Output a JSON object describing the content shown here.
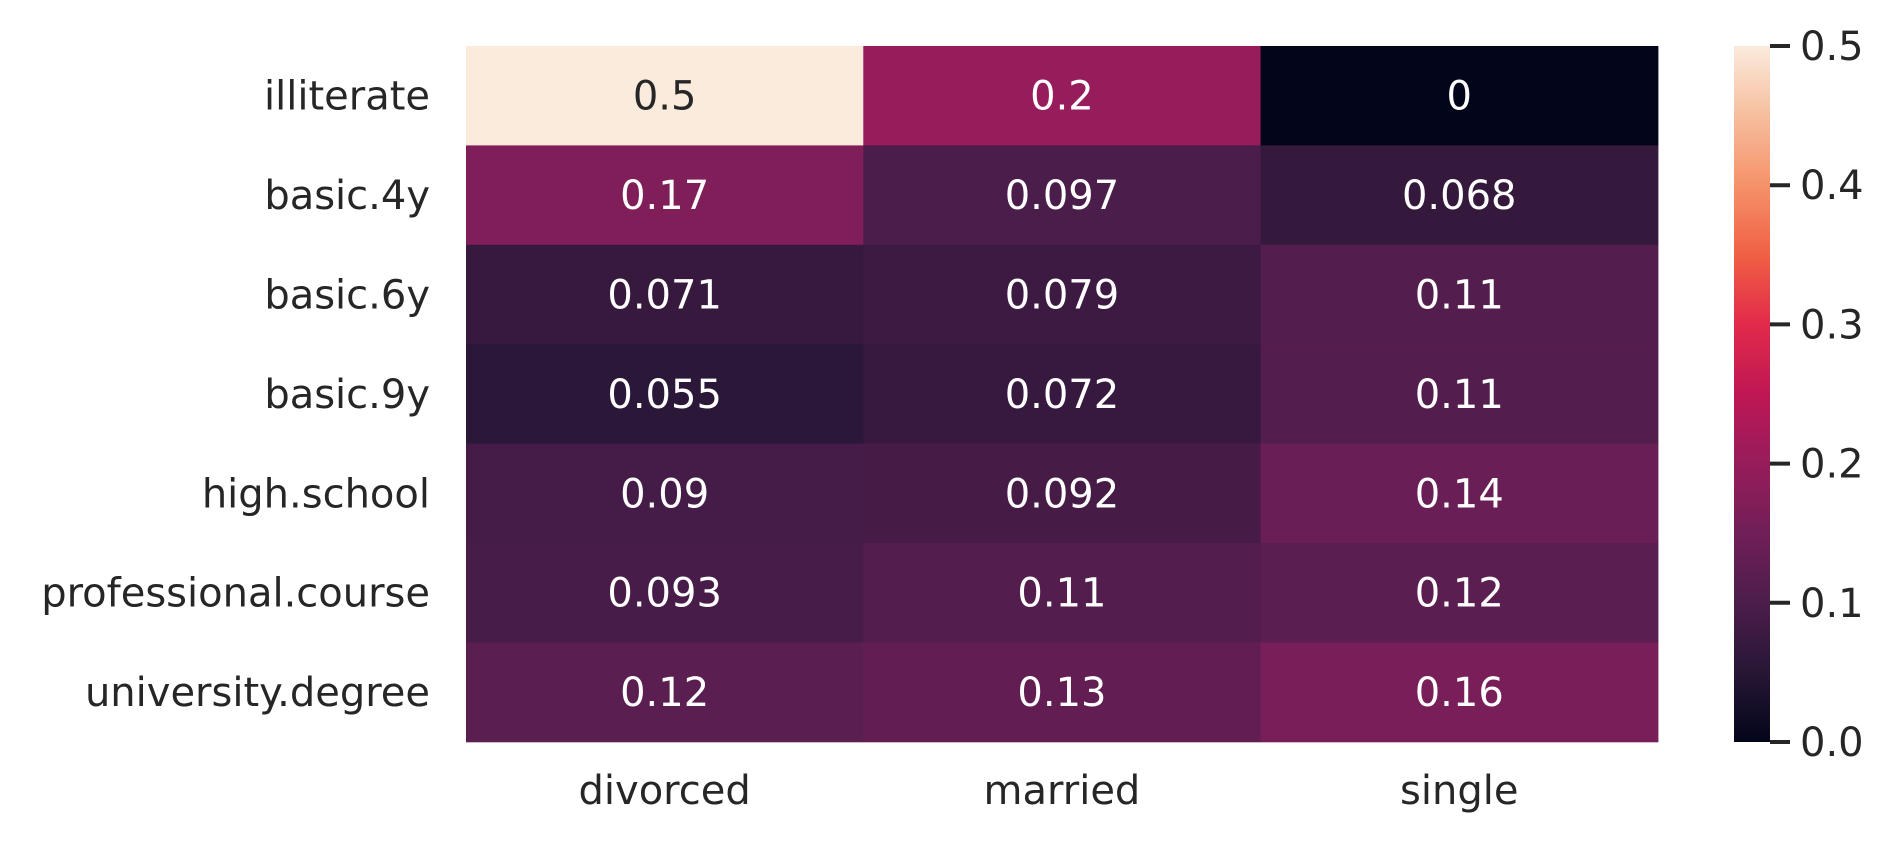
{
  "chart_data": {
    "type": "heatmap",
    "rows": [
      "illiterate",
      "basic.4y",
      "basic.6y",
      "basic.9y",
      "high.school",
      "professional.course",
      "university.degree"
    ],
    "columns": [
      "divorced",
      "married",
      "single"
    ],
    "values": [
      [
        0.5,
        0.2,
        0
      ],
      [
        0.17,
        0.097,
        0.068
      ],
      [
        0.071,
        0.079,
        0.11
      ],
      [
        0.055,
        0.072,
        0.11
      ],
      [
        0.09,
        0.092,
        0.14
      ],
      [
        0.093,
        0.11,
        0.12
      ],
      [
        0.12,
        0.13,
        0.16
      ]
    ],
    "labels": [
      [
        "0.5",
        "0.2",
        "0"
      ],
      [
        "0.17",
        "0.097",
        "0.068"
      ],
      [
        "0.071",
        "0.079",
        "0.11"
      ],
      [
        "0.055",
        "0.072",
        "0.11"
      ],
      [
        "0.09",
        "0.092",
        "0.14"
      ],
      [
        "0.093",
        "0.11",
        "0.12"
      ],
      [
        "0.12",
        "0.13",
        "0.16"
      ]
    ],
    "colormap": "rocket",
    "vmin": 0,
    "vmax": 0.5,
    "colorbar": {
      "ticks": [
        0.0,
        0.1,
        0.2,
        0.3,
        0.4,
        0.5
      ],
      "tick_labels": [
        "0.0",
        "0.1",
        "0.2",
        "0.3",
        "0.4",
        "0.5"
      ],
      "placement": "right"
    },
    "grid": false,
    "title": "",
    "xlabel": "",
    "ylabel": ""
  }
}
